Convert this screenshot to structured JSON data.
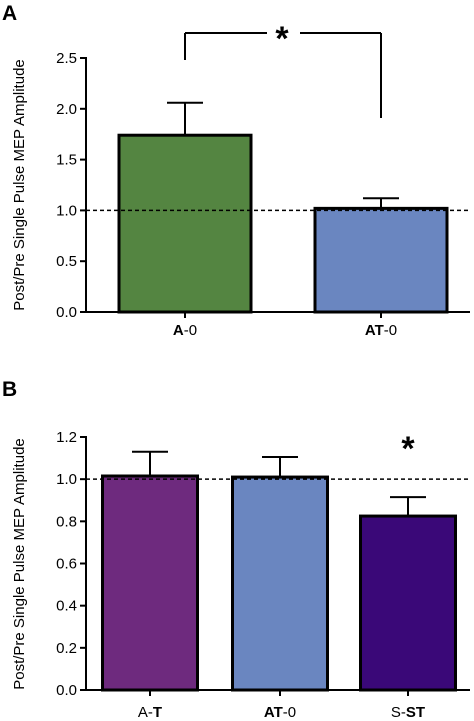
{
  "chart_data": [
    {
      "panel_label": "A",
      "type": "bar",
      "ylabel": "Post/Pre Single Pulse MEP Amplitude",
      "ylim": [
        0,
        2.5
      ],
      "yticks": [
        0.0,
        0.5,
        1.0,
        1.5,
        2.0,
        2.5
      ],
      "ytick_labels": [
        "0.0",
        "0.5",
        "1.0",
        "1.5",
        "2.0",
        "2.5"
      ],
      "categories": [
        {
          "bold": "A",
          "rest": "-0"
        },
        {
          "bold": "AT",
          "rest": "-0"
        }
      ],
      "values": [
        1.74,
        1.02
      ],
      "errors": [
        0.32,
        0.1
      ],
      "colors": [
        "#548541",
        "#6a86c0"
      ],
      "reference_line": 1.0,
      "significance": {
        "from": 0,
        "to": 1,
        "label": "*"
      }
    },
    {
      "panel_label": "B",
      "type": "bar",
      "ylabel": "Post/Pre Single Pulse MEP Amplitude",
      "ylim": [
        0,
        1.2
      ],
      "yticks": [
        0.0,
        0.2,
        0.4,
        0.6,
        0.8,
        1.0,
        1.2
      ],
      "ytick_labels": [
        "0.0",
        "0.2",
        "0.4",
        "0.6",
        "0.8",
        "1.0",
        "1.2"
      ],
      "categories": [
        {
          "plain": "A-",
          "bold": "T",
          "rest": ""
        },
        {
          "bold": "AT",
          "rest": "-0"
        },
        {
          "plain": "S-",
          "bold": "ST",
          "rest": ""
        }
      ],
      "values": [
        1.015,
        1.01,
        0.825
      ],
      "errors": [
        0.115,
        0.095,
        0.09
      ],
      "colors": [
        "#6e2a7e",
        "#6a86c0",
        "#3a0878"
      ],
      "reference_line": 1.0,
      "significance_marks": [
        {
          "bar": 2,
          "label": "*"
        }
      ]
    }
  ]
}
